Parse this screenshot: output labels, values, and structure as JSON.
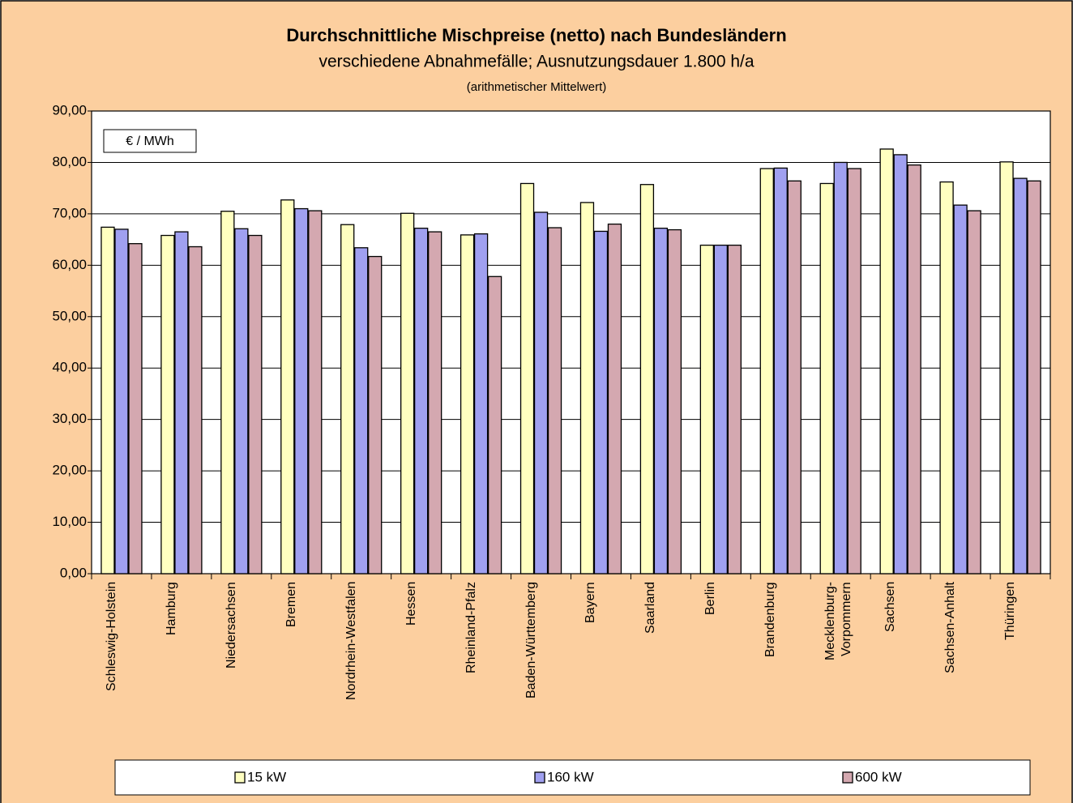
{
  "chart_data": {
    "type": "bar",
    "title": "Durchschnittliche Mischpreise (netto) nach Bundesländern",
    "subtitle": "verschiedene Abnahmefälle; Ausnutzungsdauer 1.800 h/a",
    "note": "(arithmetischer Mittelwert)",
    "unit_label": "€ / MWh",
    "categories": [
      "Schleswig-Holstein",
      "Hamburg",
      "Niedersachsen",
      "Bremen",
      "Nordrhein-Westfalen",
      "Hessen",
      "Rheinland-Pfalz",
      "Baden-Württemberg",
      "Bayern",
      "Saarland",
      "Berlin",
      "Brandenburg",
      "Mecklenburg-\nVorpommern",
      "Sachsen",
      "Sachsen-Anhalt",
      "Thüringen"
    ],
    "series": [
      {
        "name": "15 kW",
        "color": "#ffffc0",
        "values": [
          67.4,
          65.8,
          70.5,
          72.7,
          67.9,
          70.1,
          65.9,
          75.9,
          72.2,
          75.7,
          63.9,
          78.8,
          75.9,
          82.6,
          76.2,
          80.1
        ]
      },
      {
        "name": "160 kW",
        "color": "#a0a0f0",
        "values": [
          67.0,
          66.5,
          67.1,
          71.0,
          63.4,
          67.2,
          66.1,
          70.3,
          66.6,
          67.2,
          63.9,
          78.9,
          80.0,
          81.5,
          71.7,
          76.9
        ]
      },
      {
        "name": "600 kW",
        "color": "#d4a8b0",
        "values": [
          64.2,
          63.6,
          65.8,
          70.6,
          61.7,
          66.5,
          57.8,
          67.3,
          68.0,
          66.9,
          63.9,
          76.4,
          78.8,
          79.5,
          70.6,
          76.4
        ]
      }
    ],
    "ylim": [
      0,
      90
    ],
    "yticks": [
      {
        "value": 0,
        "label": "0,00"
      },
      {
        "value": 10,
        "label": "10,00"
      },
      {
        "value": 20,
        "label": "20,00"
      },
      {
        "value": 30,
        "label": "30,00"
      },
      {
        "value": 40,
        "label": "40,00"
      },
      {
        "value": 50,
        "label": "50,00"
      },
      {
        "value": 60,
        "label": "60,00"
      },
      {
        "value": 70,
        "label": "70,00"
      },
      {
        "value": 80,
        "label": "80,00"
      },
      {
        "value": 90,
        "label": "90,00"
      }
    ],
    "grid": true,
    "legend": "bottom"
  }
}
